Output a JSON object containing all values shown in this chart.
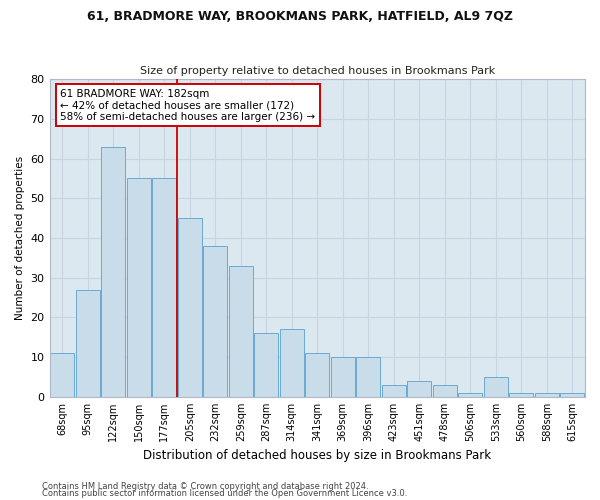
{
  "title1": "61, BRADMORE WAY, BROOKMANS PARK, HATFIELD, AL9 7QZ",
  "title2": "Size of property relative to detached houses in Brookmans Park",
  "xlabel": "Distribution of detached houses by size in Brookmans Park",
  "ylabel": "Number of detached properties",
  "categories": [
    "68sqm",
    "95sqm",
    "122sqm",
    "150sqm",
    "177sqm",
    "205sqm",
    "232sqm",
    "259sqm",
    "287sqm",
    "314sqm",
    "341sqm",
    "369sqm",
    "396sqm",
    "423sqm",
    "451sqm",
    "478sqm",
    "506sqm",
    "533sqm",
    "560sqm",
    "588sqm",
    "615sqm"
  ],
  "values": [
    11,
    27,
    63,
    55,
    55,
    45,
    38,
    33,
    16,
    17,
    11,
    10,
    10,
    3,
    4,
    3,
    1,
    5,
    1,
    1,
    1
  ],
  "bar_color": "#c9dcea",
  "bar_edgecolor": "#6aaad4",
  "grid_color": "#c8d4e0",
  "background_color": "#dce8f0",
  "ref_line_index": 4,
  "ref_line_color": "#cc0000",
  "annotation_text": "61 BRADMORE WAY: 182sqm\n← 42% of detached houses are smaller (172)\n58% of semi-detached houses are larger (236) →",
  "annotation_box_edgecolor": "#cc0000",
  "ylim": [
    0,
    80
  ],
  "yticks": [
    0,
    10,
    20,
    30,
    40,
    50,
    60,
    70,
    80
  ],
  "fig_facecolor": "#ffffff",
  "footer1": "Contains HM Land Registry data © Crown copyright and database right 2024.",
  "footer2": "Contains public sector information licensed under the Open Government Licence v3.0."
}
